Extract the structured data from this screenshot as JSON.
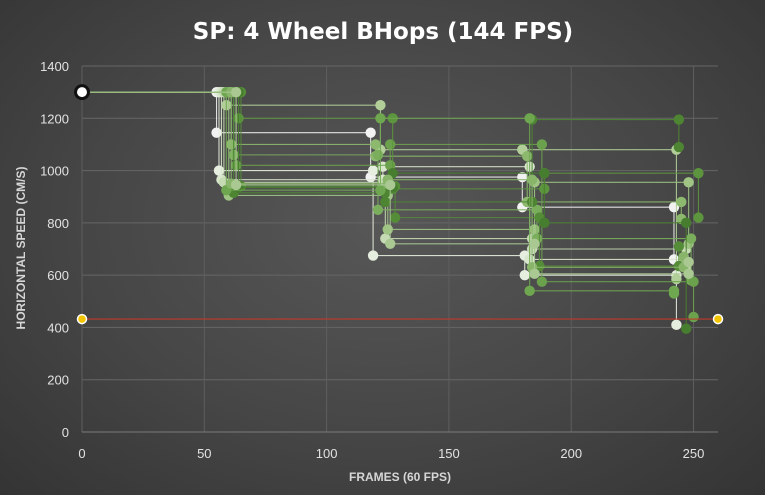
{
  "chart_data": {
    "type": "scatter",
    "title": "SP: 4 Wheel BHops (144 FPS)",
    "xlabel": "FRAMES (60 FPS)",
    "ylabel": "HORIZONTAL SPEED (CM/S)",
    "xlim": [
      0,
      260
    ],
    "ylim": [
      0,
      1400
    ],
    "xticks": [
      0,
      50,
      100,
      150,
      200,
      250
    ],
    "yticks": [
      0,
      200,
      400,
      600,
      800,
      1000,
      1200,
      1400
    ],
    "grid": true,
    "legend": "none",
    "reference_line": {
      "points": [
        [
          0,
          432
        ],
        [
          260,
          432
        ]
      ],
      "color": "#c0392b",
      "marker_color": "#f2c500"
    },
    "start_point": {
      "x": 0,
      "y": 1300,
      "color": "#ffffff"
    },
    "series": [
      {
        "color": "#f2f2f2",
        "points": [
          [
            0,
            1300
          ],
          [
            55,
            1300
          ],
          [
            55,
            1145
          ],
          [
            118,
            1145
          ],
          [
            118,
            975
          ],
          [
            180,
            975
          ],
          [
            180,
            860
          ],
          [
            242,
            860
          ],
          [
            242,
            660
          ]
        ]
      },
      {
        "color": "#e6eedf",
        "points": [
          [
            0,
            1300
          ],
          [
            56,
            1300
          ],
          [
            56,
            1000
          ],
          [
            119,
            1000
          ],
          [
            119,
            675
          ],
          [
            181,
            675
          ],
          [
            181,
            600
          ],
          [
            243,
            600
          ],
          [
            243,
            410
          ]
        ]
      },
      {
        "color": "#d8e6cc",
        "points": [
          [
            0,
            1300
          ],
          [
            57,
            1300
          ],
          [
            57,
            965
          ],
          [
            123,
            965
          ],
          [
            123,
            1015
          ],
          [
            183,
            1015
          ],
          [
            183,
            660
          ],
          [
            246,
            660
          ],
          [
            246,
            640
          ]
        ]
      },
      {
        "color": "#c6dbb4",
        "points": [
          [
            0,
            1300
          ],
          [
            58,
            1300
          ],
          [
            58,
            955
          ],
          [
            124,
            955
          ],
          [
            124,
            740
          ],
          [
            184,
            740
          ],
          [
            184,
            700
          ],
          [
            247,
            700
          ],
          [
            247,
            630
          ]
        ]
      },
      {
        "color": "#b2cf9a",
        "points": [
          [
            0,
            1300
          ],
          [
            59,
            1300
          ],
          [
            59,
            1250
          ],
          [
            122,
            1250
          ],
          [
            122,
            1080
          ],
          [
            180,
            1080
          ],
          [
            180,
            1080
          ],
          [
            243,
            1080
          ],
          [
            243,
            585
          ]
        ]
      },
      {
        "color": "#9fc484",
        "points": [
          [
            0,
            1300
          ],
          [
            60,
            1300
          ],
          [
            60,
            905
          ],
          [
            125,
            905
          ],
          [
            125,
            775
          ],
          [
            185,
            775
          ],
          [
            185,
            955
          ],
          [
            248,
            955
          ],
          [
            248,
            720
          ]
        ]
      },
      {
        "color": "#8cb96e",
        "points": [
          [
            0,
            1300
          ],
          [
            61,
            1300
          ],
          [
            61,
            1100
          ],
          [
            120,
            1100
          ],
          [
            120,
            1055
          ],
          [
            182,
            1055
          ],
          [
            182,
            880
          ],
          [
            245,
            880
          ],
          [
            245,
            815
          ]
        ]
      },
      {
        "color": "#7bae5c",
        "points": [
          [
            0,
            1300
          ],
          [
            62,
            1300
          ],
          [
            62,
            1060
          ],
          [
            121,
            1060
          ],
          [
            121,
            850
          ],
          [
            186,
            850
          ],
          [
            186,
            740
          ],
          [
            249,
            740
          ],
          [
            249,
            580
          ]
        ]
      },
      {
        "color": "#6ba14c",
        "points": [
          [
            0,
            1300
          ],
          [
            63,
            1300
          ],
          [
            63,
            1020
          ],
          [
            126,
            1020
          ],
          [
            126,
            1100
          ],
          [
            188,
            1100
          ],
          [
            188,
            575
          ],
          [
            250,
            575
          ],
          [
            250,
            440
          ]
        ]
      },
      {
        "color": "#5d953f",
        "points": [
          [
            0,
            1300
          ],
          [
            64,
            1300
          ],
          [
            64,
            1200
          ],
          [
            127,
            1200
          ],
          [
            127,
            930
          ],
          [
            189,
            930
          ],
          [
            189,
            990
          ],
          [
            252,
            990
          ],
          [
            252,
            820
          ]
        ]
      },
      {
        "color": "#558c38",
        "points": [
          [
            0,
            1300
          ],
          [
            65,
            1300
          ],
          [
            65,
            940
          ],
          [
            128,
            940
          ],
          [
            128,
            820
          ],
          [
            187,
            820
          ],
          [
            187,
            635
          ],
          [
            244,
            635
          ],
          [
            244,
            710
          ]
        ]
      },
      {
        "color": "#4e8533",
        "points": [
          [
            0,
            1300
          ],
          [
            62,
            1300
          ],
          [
            62,
            915
          ],
          [
            124,
            915
          ],
          [
            124,
            880
          ],
          [
            184,
            880
          ],
          [
            184,
            1195
          ],
          [
            244,
            1195
          ],
          [
            244,
            1090
          ]
        ]
      },
      {
        "color": "#477d2e",
        "points": [
          [
            0,
            1300
          ],
          [
            64,
            1300
          ],
          [
            64,
            935
          ],
          [
            127,
            935
          ],
          [
            127,
            990
          ],
          [
            189,
            990
          ],
          [
            189,
            800
          ],
          [
            247,
            800
          ],
          [
            247,
            395
          ]
        ]
      },
      {
        "color": "#6fa650",
        "points": [
          [
            0,
            1300
          ],
          [
            59,
            1300
          ],
          [
            59,
            925
          ],
          [
            122,
            925
          ],
          [
            122,
            1200
          ],
          [
            183,
            1200
          ],
          [
            183,
            540
          ],
          [
            242,
            540
          ],
          [
            242,
            530
          ]
        ]
      },
      {
        "color": "#88b56a",
        "points": [
          [
            0,
            1300
          ],
          [
            61,
            1300
          ],
          [
            61,
            950
          ],
          [
            125,
            950
          ],
          [
            125,
            965
          ],
          [
            184,
            965
          ],
          [
            184,
            630
          ],
          [
            246,
            630
          ],
          [
            246,
            670
          ]
        ]
      },
      {
        "color": "#a9c892",
        "points": [
          [
            0,
            1300
          ],
          [
            63,
            1300
          ],
          [
            63,
            945
          ],
          [
            126,
            945
          ],
          [
            126,
            720
          ],
          [
            185,
            720
          ],
          [
            185,
            605
          ],
          [
            248,
            605
          ],
          [
            248,
            650
          ]
        ]
      }
    ]
  }
}
